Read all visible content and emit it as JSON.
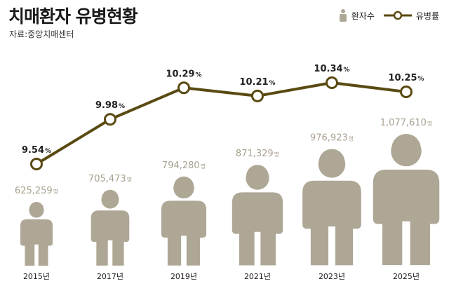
{
  "header": {
    "title": "치매환자 유병현황",
    "source": "자료:중앙치매센터"
  },
  "legend": {
    "patients_label": "환자수",
    "rate_label": "유병률"
  },
  "colors": {
    "line": "#5a4a12",
    "person": "#aea796",
    "patient_text": "#a9a18f"
  },
  "chart_data": {
    "type": "line",
    "title": "치매환자 유병현황",
    "categories": [
      "2015년",
      "2017년",
      "2019년",
      "2021년",
      "2023년",
      "2025년"
    ],
    "series": [
      {
        "name": "유병률",
        "unit": "%",
        "values": [
          9.54,
          9.98,
          10.29,
          10.21,
          10.34,
          10.25
        ],
        "labels": [
          "9.54",
          "9.98",
          "10.29",
          "10.21",
          "10.34",
          "10.25"
        ]
      },
      {
        "name": "환자수",
        "unit": "명",
        "values": [
          625259,
          705473,
          794280,
          871329,
          976923,
          1077610
        ],
        "labels": [
          "625,259",
          "705,473",
          "794,280",
          "871,329",
          "976,923",
          "1,077,610"
        ]
      }
    ],
    "legend_position": "top-right",
    "grid": false
  }
}
